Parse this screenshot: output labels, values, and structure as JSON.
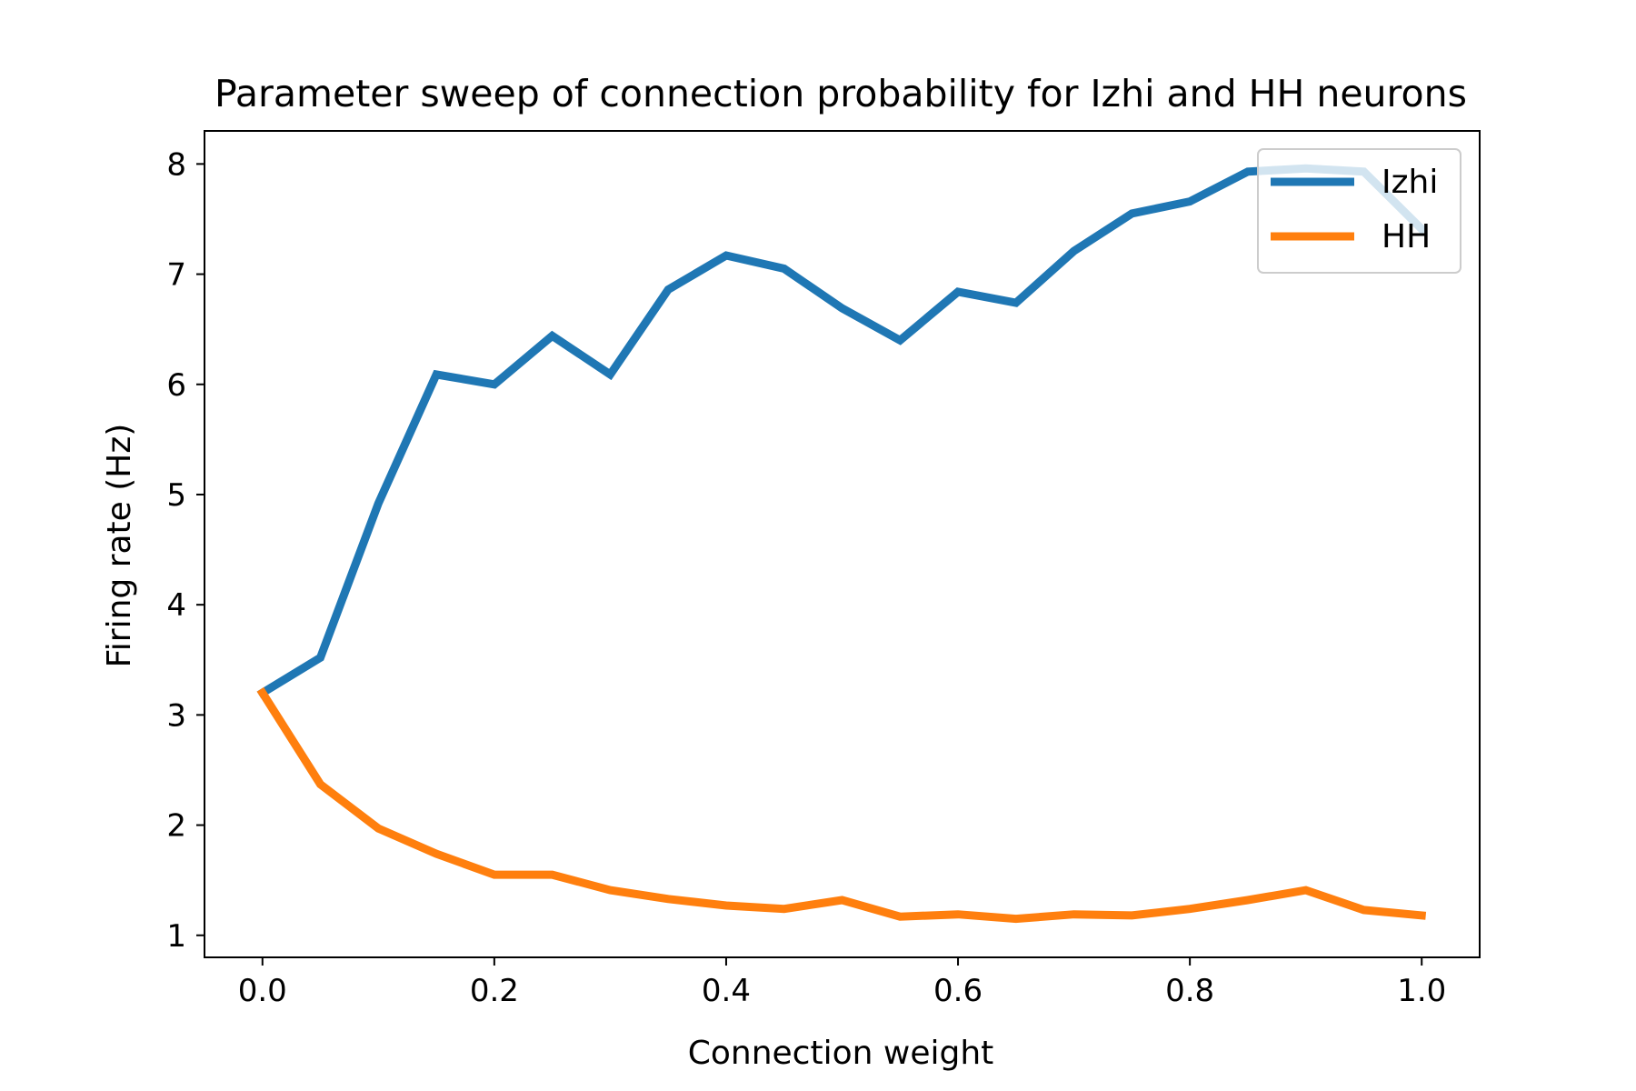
{
  "chart_data": {
    "type": "line",
    "title": "Parameter sweep of connection probability for Izhi and HH neurons",
    "xlabel": "Connection weight",
    "ylabel": "Firing rate (Hz)",
    "xlim": [
      -0.05,
      1.05
    ],
    "ylim": [
      0.8,
      8.3
    ],
    "xticks": [
      "0.0",
      "0.2",
      "0.4",
      "0.6",
      "0.8",
      "1.0"
    ],
    "yticks": [
      "1",
      "2",
      "3",
      "4",
      "5",
      "6",
      "7",
      "8"
    ],
    "grid": false,
    "legend_position": "top-right",
    "x": [
      0.0,
      0.05,
      0.1,
      0.15,
      0.2,
      0.25,
      0.3,
      0.35,
      0.4,
      0.45,
      0.5,
      0.55,
      0.6,
      0.65,
      0.7,
      0.75,
      0.8,
      0.85,
      0.9,
      0.95,
      1.0
    ],
    "series": [
      {
        "name": "Izhi",
        "color": "#1f77b4",
        "values": [
          3.2,
          3.52,
          4.92,
          6.09,
          6.0,
          6.44,
          6.09,
          6.86,
          7.17,
          7.05,
          6.69,
          6.4,
          6.84,
          6.74,
          7.21,
          7.55,
          7.66,
          7.93,
          7.96,
          7.93,
          7.41
        ]
      },
      {
        "name": "HH",
        "color": "#ff7f0e",
        "values": [
          3.2,
          2.37,
          1.97,
          1.74,
          1.55,
          1.55,
          1.41,
          1.33,
          1.27,
          1.24,
          1.32,
          1.17,
          1.19,
          1.15,
          1.19,
          1.18,
          1.24,
          1.32,
          1.41,
          1.23,
          1.18
        ]
      }
    ]
  }
}
